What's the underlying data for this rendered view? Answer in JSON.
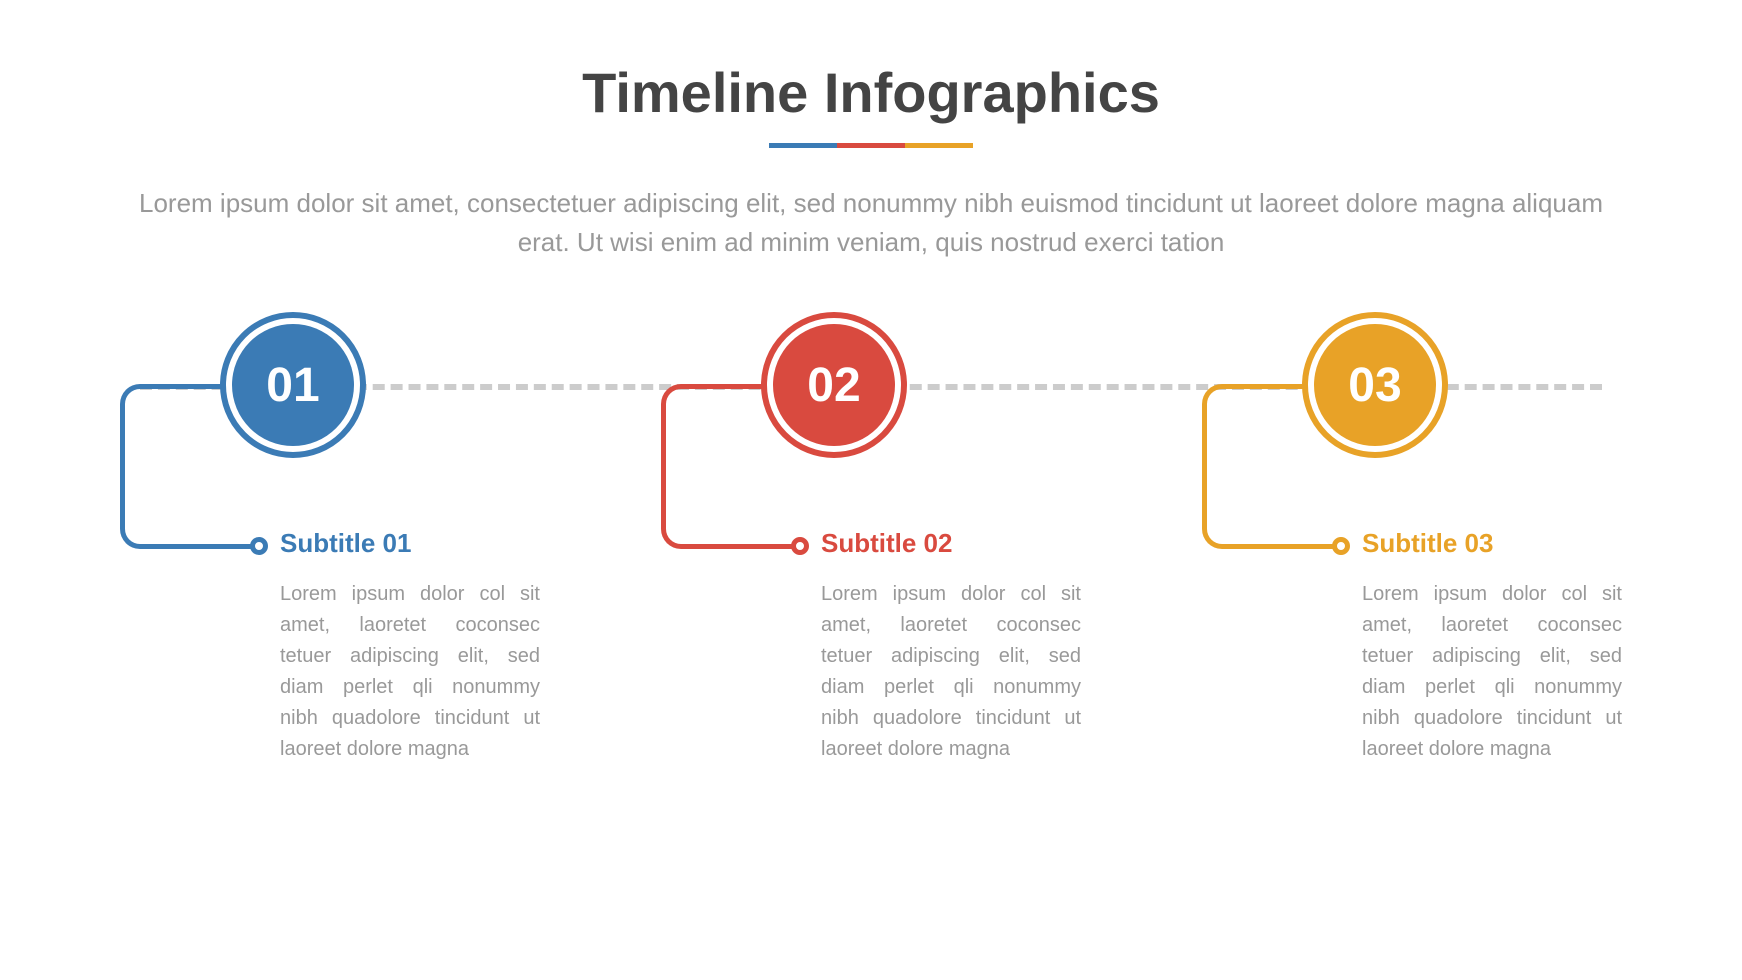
{
  "type": "infographic",
  "background_color": "#ffffff",
  "header": {
    "title": "Timeline Infographics",
    "title_color": "#444444",
    "title_fontsize": 56,
    "underline_colors": [
      "#3b7bb5",
      "#d94a3f",
      "#e8a227"
    ],
    "description": "Lorem ipsum dolor sit amet, consectetuer adipiscing elit, sed nonummy nibh euismod tincidunt ut laoreet dolore magna aliquam erat. Ut wisi enim ad minim veniam, quis nostrud exerci tation",
    "description_color": "#999999",
    "description_fontsize": 26
  },
  "timeline": {
    "dashed_line_color": "#cccccc",
    "circle_diameter_outer": 146,
    "circle_diameter_inner": 122,
    "border_width": 6,
    "connector_line_width": 5,
    "number_fontsize": 48,
    "number_color": "#ffffff",
    "subtitle_fontsize": 26,
    "body_fontsize": 20,
    "body_color": "#999999"
  },
  "steps": [
    {
      "number": "01",
      "color": "#3b7bb5",
      "subtitle": "Subtitle 01",
      "body": "Lorem ipsum dolor col sit amet, laoretet coconsec tetuer adipiscing elit, sed diam perlet qli nonummy nibh quadolore tincidunt ut laoreet dolore magna"
    },
    {
      "number": "02",
      "color": "#d94a3f",
      "subtitle": "Subtitle 02",
      "body": "Lorem ipsum dolor col sit amet, laoretet coconsec tetuer adipiscing elit, sed diam perlet qli nonummy nibh quadolore tincidunt ut laoreet dolore magna"
    },
    {
      "number": "03",
      "color": "#e8a227",
      "subtitle": "Subtitle 03",
      "body": "Lorem ipsum dolor col sit amet, laoretet coconsec tetuer adipiscing elit, sed diam perlet qli nonummy nibh quadolore tincidunt ut laoreet dolore magna"
    }
  ]
}
